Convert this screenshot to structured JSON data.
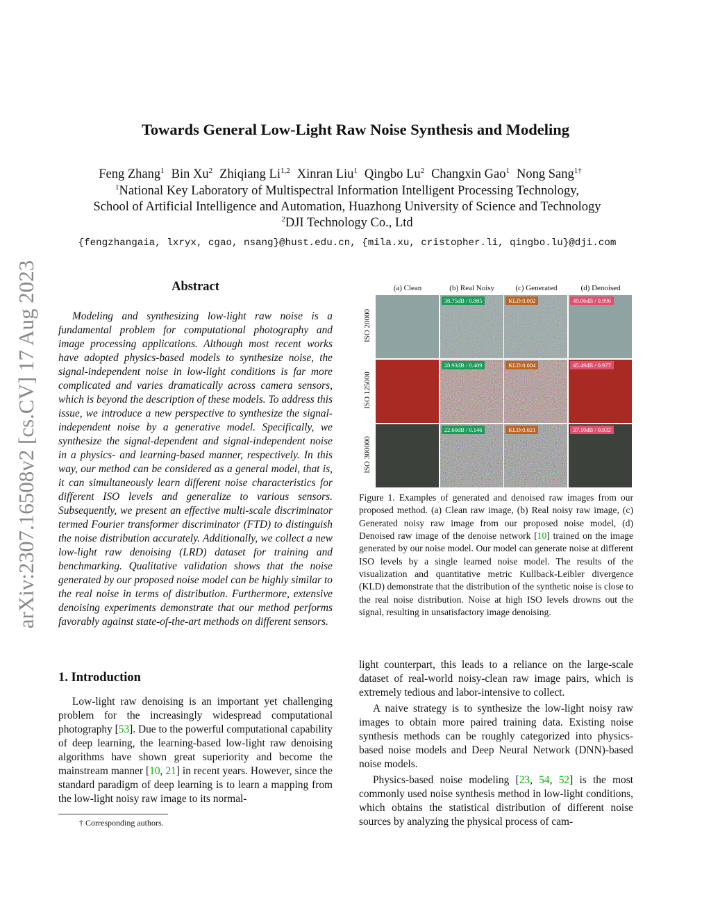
{
  "side_stamp": "arXiv:2307.16508v2  [cs.CV]  17 Aug 2023",
  "title": "Towards General Low-Light Raw Noise Synthesis and Modeling",
  "authors": [
    {
      "name": "Feng Zhang",
      "aff": "1"
    },
    {
      "name": "Bin Xu",
      "aff": "2"
    },
    {
      "name": "Zhiqiang Li",
      "aff": "1,2"
    },
    {
      "name": "Xinran Liu",
      "aff": "1"
    },
    {
      "name": "Qingbo Lu",
      "aff": "2"
    },
    {
      "name": "Changxin Gao",
      "aff": "1"
    },
    {
      "name": "Nong Sang",
      "aff": "1†"
    }
  ],
  "affiliations": {
    "a1_mark": "1",
    "a1_line1": "National Key Laboratory of Multispectral Information Intelligent Processing Technology,",
    "a1_line2": "School of Artificial Intelligence and Automation, Huazhong University of Science and Technology",
    "a2_mark": "2",
    "a2": "DJI Technology Co., Ltd"
  },
  "emails": "{fengzhangaia, lxryx, cgao, nsang}@hust.edu.cn, {mila.xu, cristopher.li, qingbo.lu}@dji.com",
  "abstract": {
    "heading": "Abstract",
    "text": "Modeling and synthesizing low-light raw noise is a fundamental problem for computational photography and image processing applications. Although most recent works have adopted physics-based models to synthesize noise, the signal-independent noise in low-light conditions is far more complicated and varies dramatically across camera sensors, which is beyond the description of these models. To address this issue, we introduce a new perspective to synthesize the signal-independent noise by a generative model. Specifically, we synthesize the signal-dependent and signal-independent noise in a physics- and learning-based manner, respectively. In this way, our method can be considered as a general model, that is, it can simultaneously learn different noise characteristics for different ISO levels and generalize to various sensors. Subsequently, we present an effective multi-scale discriminator termed Fourier transformer discriminator (FTD) to distinguish the noise distribution accurately. Additionally, we collect a new low-light raw denoising (LRD) dataset for training and benchmarking. Qualitative validation shows that the noise generated by our proposed noise model can be highly similar to the real noise in terms of distribution. Furthermore, extensive denoising experiments demonstrate that our method performs favorably against state-of-the-art methods on different sensors."
  },
  "intro": {
    "heading": "1. Introduction",
    "p1": [
      {
        "t": "Low-light raw denoising is an important yet challenging problem for the increasingly widespread computational photography ["
      },
      {
        "t": "53",
        "c": 1
      },
      {
        "t": "]. Due to the powerful computational capability of deep learning, the learning-based low-light raw denoising algorithms have shown great superiority and become the mainstream manner ["
      },
      {
        "t": "10",
        "c": 1
      },
      {
        "t": ", "
      },
      {
        "t": "21",
        "c": 1
      },
      {
        "t": "] in recent years. However, since the standard paradigm of deep learning is to learn a mapping from the low-light noisy raw image to its normal-"
      }
    ],
    "p1_cont": [
      {
        "t": "light counterpart, this leads to a reliance on the large-scale dataset of real-world noisy-clean raw image pairs, which is extremely tedious and labor-intensive to collect."
      }
    ],
    "p2": [
      {
        "t": "A naive strategy is to synthesize the low-light noisy raw images to obtain more paired training data. Existing noise synthesis methods can be roughly categorized into physics-based noise models and Deep Neural Network (DNN)-based noise models."
      }
    ],
    "p3": [
      {
        "t": "Physics-based noise modeling ["
      },
      {
        "t": "23",
        "c": 1
      },
      {
        "t": ", "
      },
      {
        "t": "54",
        "c": 1
      },
      {
        "t": ", "
      },
      {
        "t": "52",
        "c": 1
      },
      {
        "t": "] is the most commonly used noise synthesis method in low-light conditions, which obtains the statistical distribution of different noise sources by analyzing the physical process of cam-"
      }
    ]
  },
  "footnote": "† Corresponding authors.",
  "figure": {
    "columns": [
      "(a) Clean",
      "(b) Real Noisy",
      "(c) Generated",
      "(d) Denoised"
    ],
    "rows": [
      {
        "label": "ISO 20000",
        "real": "38.75dB / 0.885",
        "gen": "KLD:0.002",
        "den": "49.06dB / 0.996",
        "color": "#8fa3a3"
      },
      {
        "label": "ISO 125000",
        "real": "28.93dB / 0.409",
        "gen": "KLD:0.004",
        "den": "45.49dB / 0.977",
        "color": "#a82a22"
      },
      {
        "label": "ISO 300000",
        "real": "22.60dB / 0.146",
        "gen": "KLD:0.021",
        "den": "37.10dB / 0.932",
        "color": "#3d413c"
      }
    ],
    "badge_colors": {
      "real": "#1e9a5a",
      "gen": "#b8662a",
      "den": "#e0506e"
    },
    "caption": [
      {
        "t": "Figure 1. Examples of generated and denoised raw images from our proposed method. (a) Clean raw image, (b) Real noisy raw image, (c) Generated noisy raw image from our proposed noise model, (d) Denoised raw image of the denoise network ["
      },
      {
        "t": "10",
        "c": 1
      },
      {
        "t": "] trained on the image generated by our noise model. Our model can generate noise at different ISO levels by a single learned noise model. The results of the visualization and quantitative metric Kullback-Leibler divergence (KLD) demonstrate that the distribution of the synthetic noise is close to the real noise distribution. Noise at high ISO levels drowns out the signal, resulting in unsatisfactory image denoising."
      }
    ]
  }
}
